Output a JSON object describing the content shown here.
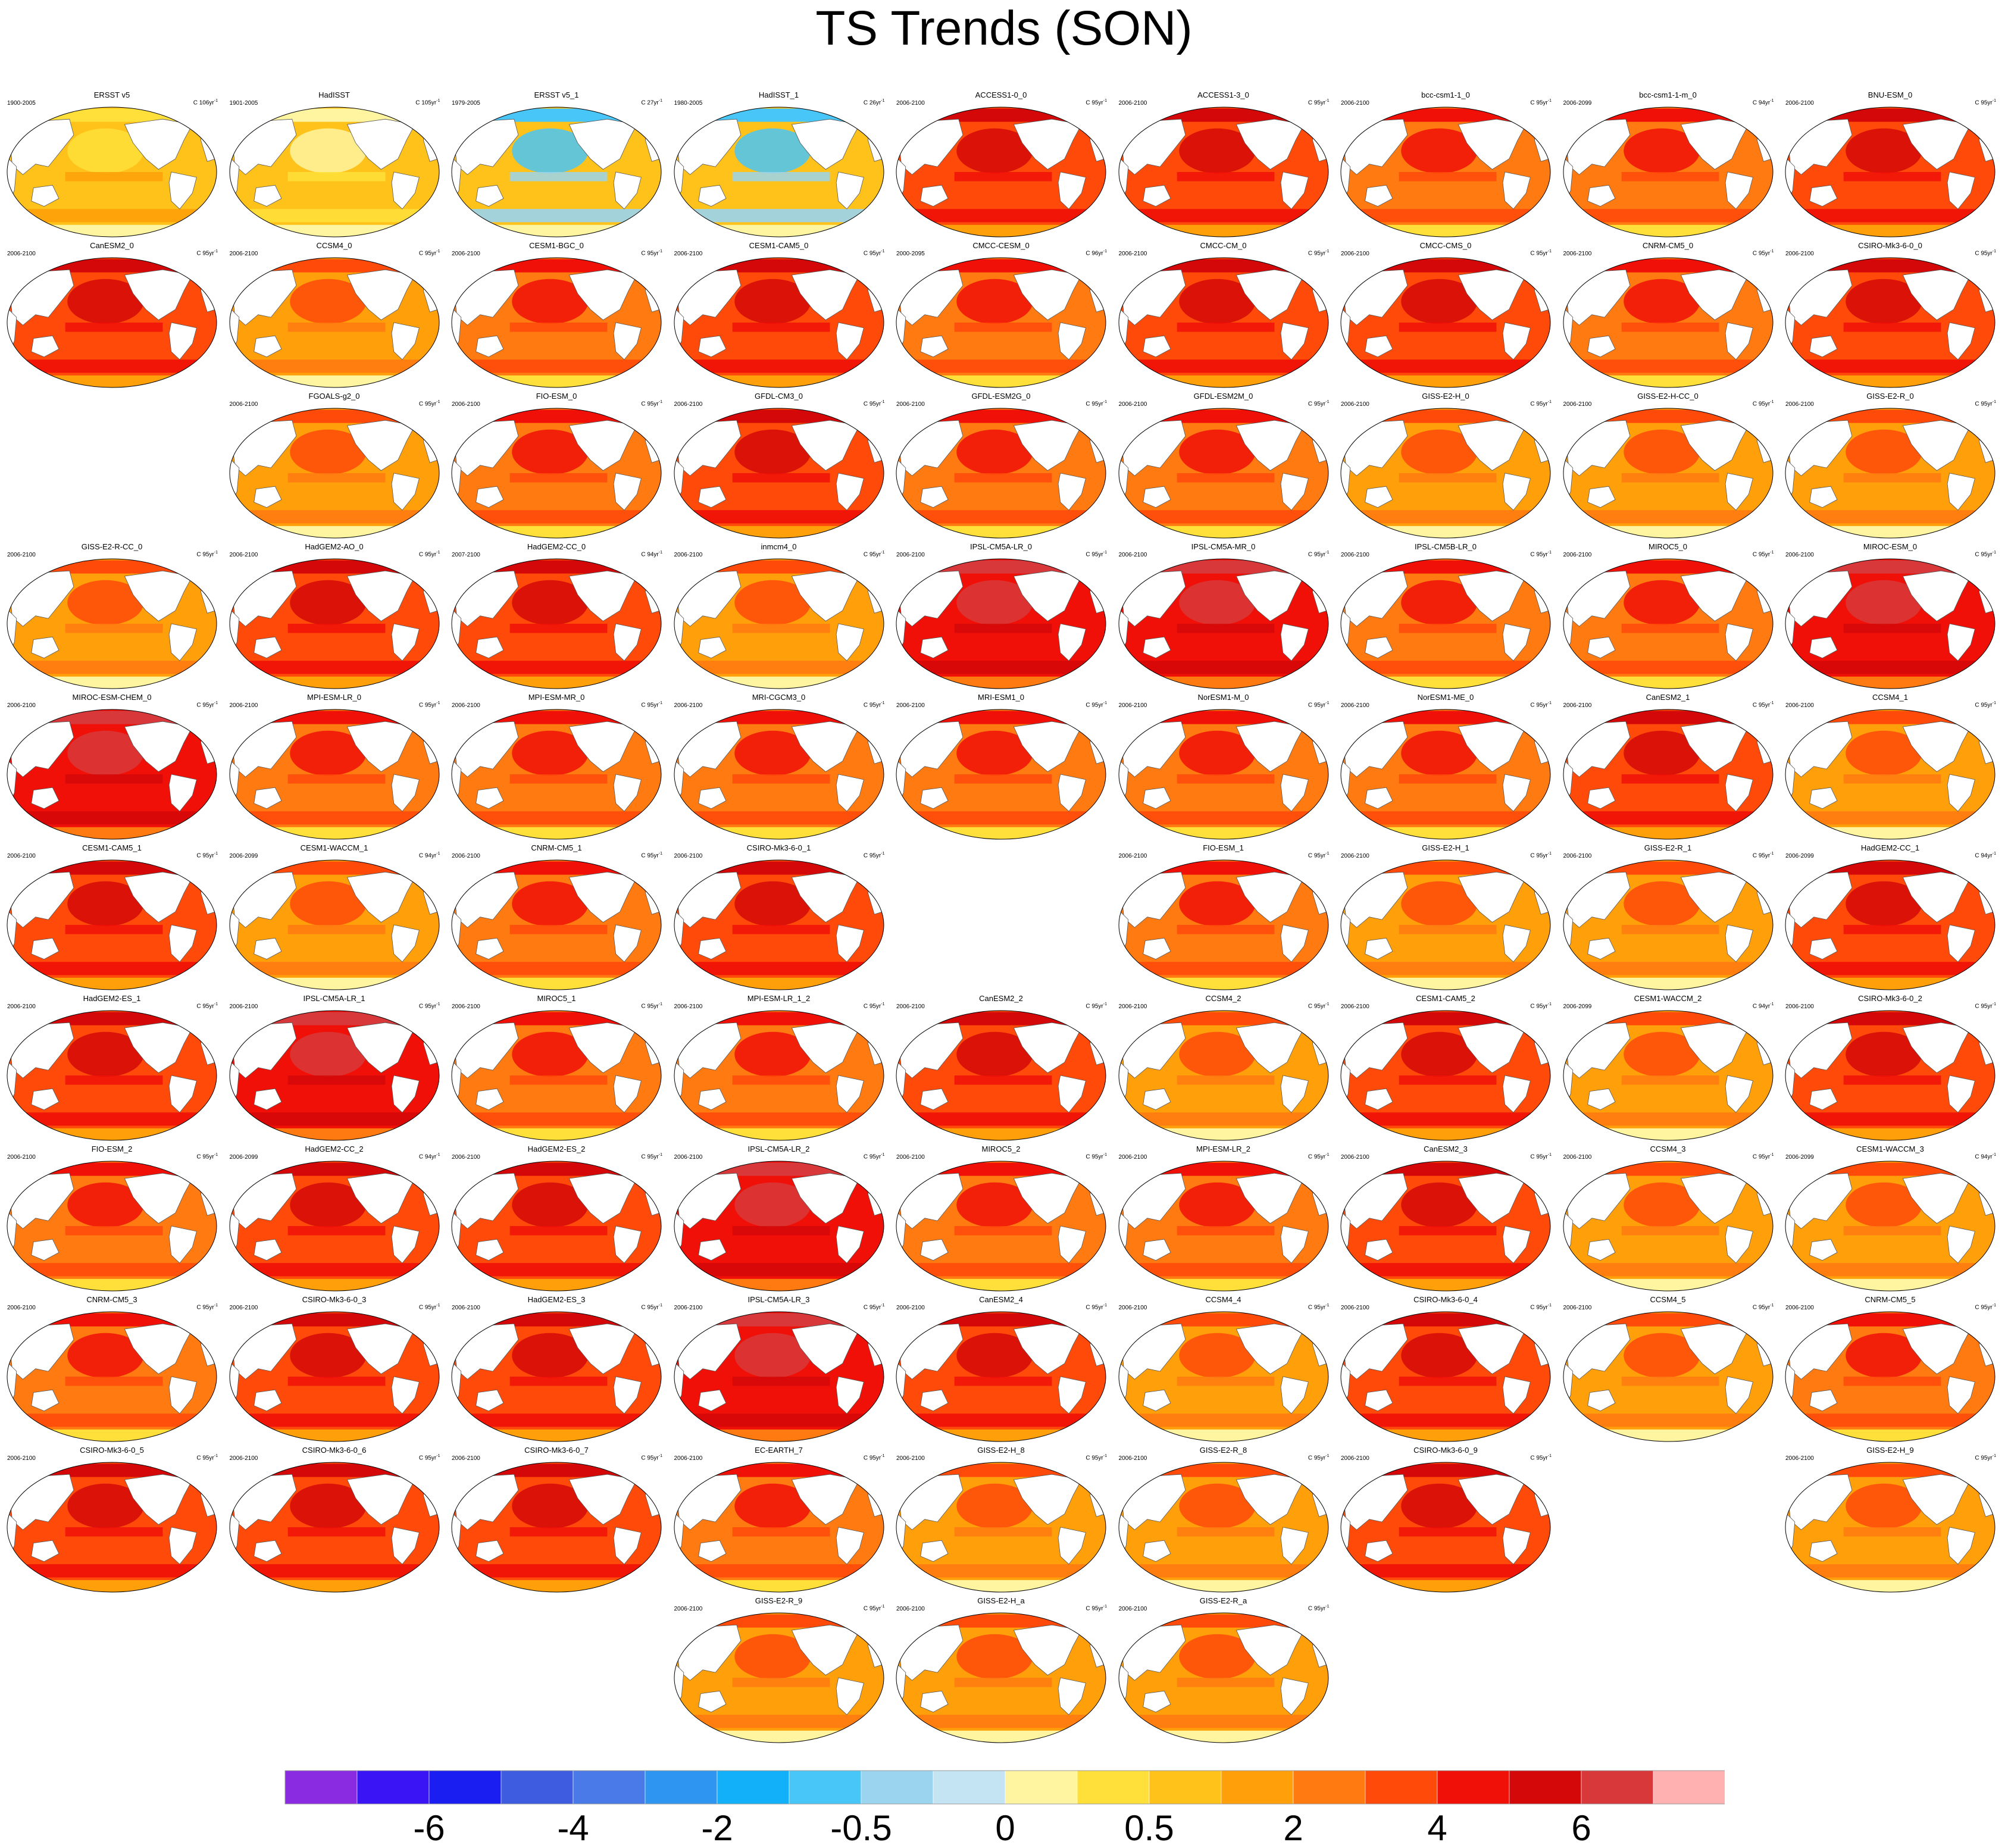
{
  "title": "TS Trends (SON)",
  "chart_data": {
    "type": "heatmap",
    "title": "TS Trends (SON)",
    "colorbar": {
      "colors": [
        "#8a2be2",
        "#3a14f5",
        "#1a1ef0",
        "#3d5ce0",
        "#4a7ae8",
        "#2e96f0",
        "#12b0f8",
        "#48c6f8",
        "#9ad4ef",
        "#c4e4f4",
        "#fff5a0",
        "#ffe03a",
        "#ffc21a",
        "#ffa00a",
        "#ff7a10",
        "#ff4a0a",
        "#f01008",
        "#d40808",
        "#d8383a",
        "#ffb0b0"
      ],
      "tick_labels": [
        "-6",
        "-4",
        "-2",
        "-0.5",
        "0",
        "0.5",
        "2",
        "4",
        "6"
      ]
    },
    "panels": [
      {
        "name": "ERSST v5",
        "period": "1900-2005",
        "units": "C 106yr",
        "level": 2,
        "row": 0,
        "col": 0
      },
      {
        "name": "HadISST",
        "period": "1901-2005",
        "units": "C 105yr",
        "level": 1,
        "row": 0,
        "col": 1
      },
      {
        "name": "ERSST v5_1",
        "period": "1979-2005",
        "units": "C 27yr",
        "level": 0,
        "row": 0,
        "col": 2
      },
      {
        "name": "HadISST_1",
        "period": "1980-2005",
        "units": "C 26yr",
        "level": 0,
        "row": 0,
        "col": 3
      },
      {
        "name": "ACCESS1-0_0",
        "period": "2006-2100",
        "units": "C 95yr",
        "level": 5,
        "row": 0,
        "col": 4
      },
      {
        "name": "ACCESS1-3_0",
        "period": "2006-2100",
        "units": "C 95yr",
        "level": 5,
        "row": 0,
        "col": 5
      },
      {
        "name": "bcc-csm1-1_0",
        "period": "2006-2100",
        "units": "C 95yr",
        "level": 4,
        "row": 0,
        "col": 6
      },
      {
        "name": "bcc-csm1-1-m_0",
        "period": "2006-2099",
        "units": "C 94yr",
        "level": 4,
        "row": 0,
        "col": 7
      },
      {
        "name": "BNU-ESM_0",
        "period": "2006-2100",
        "units": "C 95yr",
        "level": 5,
        "row": 0,
        "col": 8
      },
      {
        "name": "CanESM2_0",
        "period": "2006-2100",
        "units": "C 95yr",
        "level": 5,
        "row": 1,
        "col": 0
      },
      {
        "name": "CCSM4_0",
        "period": "2006-2100",
        "units": "C 95yr",
        "level": 3,
        "row": 1,
        "col": 1
      },
      {
        "name": "CESM1-BGC_0",
        "period": "2006-2100",
        "units": "C 95yr",
        "level": 4,
        "row": 1,
        "col": 2
      },
      {
        "name": "CESM1-CAM5_0",
        "period": "2006-2100",
        "units": "C 95yr",
        "level": 5,
        "row": 1,
        "col": 3
      },
      {
        "name": "CMCC-CESM_0",
        "period": "2000-2095",
        "units": "C 96yr",
        "level": 4,
        "row": 1,
        "col": 4
      },
      {
        "name": "CMCC-CM_0",
        "period": "2006-2100",
        "units": "C 95yr",
        "level": 5,
        "row": 1,
        "col": 5
      },
      {
        "name": "CMCC-CMS_0",
        "period": "2006-2100",
        "units": "C 95yr",
        "level": 5,
        "row": 1,
        "col": 6
      },
      {
        "name": "CNRM-CM5_0",
        "period": "2006-2100",
        "units": "C 95yr",
        "level": 4,
        "row": 1,
        "col": 7
      },
      {
        "name": "CSIRO-Mk3-6-0_0",
        "period": "2006-2100",
        "units": "C 95yr",
        "level": 5,
        "row": 1,
        "col": 8
      },
      {
        "name": "FGOALS-g2_0",
        "period": "2006-2100",
        "units": "C 95yr",
        "level": 3,
        "row": 2,
        "col": 1
      },
      {
        "name": "FIO-ESM_0",
        "period": "2006-2100",
        "units": "C 95yr",
        "level": 4,
        "row": 2,
        "col": 2
      },
      {
        "name": "GFDL-CM3_0",
        "period": "2006-2100",
        "units": "C 95yr",
        "level": 5,
        "row": 2,
        "col": 3
      },
      {
        "name": "GFDL-ESM2G_0",
        "period": "2006-2100",
        "units": "C 95yr",
        "level": 4,
        "row": 2,
        "col": 4
      },
      {
        "name": "GFDL-ESM2M_0",
        "period": "2006-2100",
        "units": "C 95yr",
        "level": 4,
        "row": 2,
        "col": 5
      },
      {
        "name": "GISS-E2-H_0",
        "period": "2006-2100",
        "units": "C 95yr",
        "level": 3,
        "row": 2,
        "col": 6
      },
      {
        "name": "GISS-E2-H-CC_0",
        "period": "2006-2100",
        "units": "C 95yr",
        "level": 3,
        "row": 2,
        "col": 7
      },
      {
        "name": "GISS-E2-R_0",
        "period": "2006-2100",
        "units": "C 95yr",
        "level": 3,
        "row": 2,
        "col": 8
      },
      {
        "name": "GISS-E2-R-CC_0",
        "period": "2006-2100",
        "units": "C 95yr",
        "level": 3,
        "row": 3,
        "col": 0
      },
      {
        "name": "HadGEM2-AO_0",
        "period": "2006-2100",
        "units": "C 95yr",
        "level": 5,
        "row": 3,
        "col": 1
      },
      {
        "name": "HadGEM2-CC_0",
        "period": "2007-2100",
        "units": "C 94yr",
        "level": 5,
        "row": 3,
        "col": 2
      },
      {
        "name": "inmcm4_0",
        "period": "2006-2100",
        "units": "C 95yr",
        "level": 3,
        "row": 3,
        "col": 3
      },
      {
        "name": "IPSL-CM5A-LR_0",
        "period": "2006-2100",
        "units": "C 95yr",
        "level": 6,
        "row": 3,
        "col": 4
      },
      {
        "name": "IPSL-CM5A-MR_0",
        "period": "2006-2100",
        "units": "C 95yr",
        "level": 6,
        "row": 3,
        "col": 5
      },
      {
        "name": "IPSL-CM5B-LR_0",
        "period": "2006-2100",
        "units": "C 95yr",
        "level": 4,
        "row": 3,
        "col": 6
      },
      {
        "name": "MIROC5_0",
        "period": "2006-2100",
        "units": "C 95yr",
        "level": 4,
        "row": 3,
        "col": 7
      },
      {
        "name": "MIROC-ESM_0",
        "period": "2006-2100",
        "units": "C 95yr",
        "level": 6,
        "row": 3,
        "col": 8
      },
      {
        "name": "MIROC-ESM-CHEM_0",
        "period": "2006-2100",
        "units": "C 95yr",
        "level": 6,
        "row": 4,
        "col": 0
      },
      {
        "name": "MPI-ESM-LR_0",
        "period": "2006-2100",
        "units": "C 95yr",
        "level": 4,
        "row": 4,
        "col": 1
      },
      {
        "name": "MPI-ESM-MR_0",
        "period": "2006-2100",
        "units": "C 95yr",
        "level": 4,
        "row": 4,
        "col": 2
      },
      {
        "name": "MRI-CGCM3_0",
        "period": "2006-2100",
        "units": "C 95yr",
        "level": 4,
        "row": 4,
        "col": 3
      },
      {
        "name": "MRI-ESM1_0",
        "period": "2006-2100",
        "units": "C 95yr",
        "level": 4,
        "row": 4,
        "col": 4
      },
      {
        "name": "NorESM1-M_0",
        "period": "2006-2100",
        "units": "C 95yr",
        "level": 4,
        "row": 4,
        "col": 5
      },
      {
        "name": "NorESM1-ME_0",
        "period": "2006-2100",
        "units": "C 95yr",
        "level": 4,
        "row": 4,
        "col": 6
      },
      {
        "name": "CanESM2_1",
        "period": "2006-2100",
        "units": "C 95yr",
        "level": 5,
        "row": 4,
        "col": 7
      },
      {
        "name": "CCSM4_1",
        "period": "2006-2100",
        "units": "C 95yr",
        "level": 3,
        "row": 4,
        "col": 8
      },
      {
        "name": "CESM1-CAM5_1",
        "period": "2006-2100",
        "units": "C 95yr",
        "level": 5,
        "row": 5,
        "col": 0
      },
      {
        "name": "CESM1-WACCM_1",
        "period": "2006-2099",
        "units": "C 94yr",
        "level": 3,
        "row": 5,
        "col": 1
      },
      {
        "name": "CNRM-CM5_1",
        "period": "2006-2100",
        "units": "C 95yr",
        "level": 4,
        "row": 5,
        "col": 2
      },
      {
        "name": "CSIRO-Mk3-6-0_1",
        "period": "2006-2100",
        "units": "C 95yr",
        "level": 5,
        "row": 5,
        "col": 3
      },
      {
        "name": "FIO-ESM_1",
        "period": "2006-2100",
        "units": "C 95yr",
        "level": 4,
        "row": 5,
        "col": 5
      },
      {
        "name": "GISS-E2-H_1",
        "period": "2006-2100",
        "units": "C 95yr",
        "level": 3,
        "row": 5,
        "col": 6
      },
      {
        "name": "GISS-E2-R_1",
        "period": "2006-2100",
        "units": "C 95yr",
        "level": 3,
        "row": 5,
        "col": 7
      },
      {
        "name": "HadGEM2-CC_1",
        "period": "2006-2099",
        "units": "C 94yr",
        "level": 5,
        "row": 5,
        "col": 8
      },
      {
        "name": "HadGEM2-ES_1",
        "period": "2006-2100",
        "units": "C 95yr",
        "level": 5,
        "row": 6,
        "col": 0
      },
      {
        "name": "IPSL-CM5A-LR_1",
        "period": "2006-2100",
        "units": "C 95yr",
        "level": 6,
        "row": 6,
        "col": 1
      },
      {
        "name": "MIROC5_1",
        "period": "2006-2100",
        "units": "C 95yr",
        "level": 4,
        "row": 6,
        "col": 2
      },
      {
        "name": "MPI-ESM-LR_1_2",
        "period": "2006-2100",
        "units": "C 95yr",
        "level": 4,
        "row": 6,
        "col": 3
      },
      {
        "name": "CanESM2_2",
        "period": "2006-2100",
        "units": "C 95yr",
        "level": 5,
        "row": 6,
        "col": 4
      },
      {
        "name": "CCSM4_2",
        "period": "2006-2100",
        "units": "C 95yr",
        "level": 3,
        "row": 6,
        "col": 5
      },
      {
        "name": "CESM1-CAM5_2",
        "period": "2006-2100",
        "units": "C 95yr",
        "level": 5,
        "row": 6,
        "col": 6
      },
      {
        "name": "CESM1-WACCM_2",
        "period": "2006-2099",
        "units": "C 94yr",
        "level": 3,
        "row": 6,
        "col": 7
      },
      {
        "name": "CSIRO-Mk3-6-0_2",
        "period": "2006-2100",
        "units": "C 95yr",
        "level": 5,
        "row": 6,
        "col": 8
      },
      {
        "name": "FIO-ESM_2",
        "period": "2006-2100",
        "units": "C 95yr",
        "level": 4,
        "row": 7,
        "col": 0
      },
      {
        "name": "HadGEM2-CC_2",
        "period": "2006-2099",
        "units": "C 94yr",
        "level": 5,
        "row": 7,
        "col": 1
      },
      {
        "name": "HadGEM2-ES_2",
        "period": "2006-2100",
        "units": "C 95yr",
        "level": 5,
        "row": 7,
        "col": 2
      },
      {
        "name": "IPSL-CM5A-LR_2",
        "period": "2006-2100",
        "units": "C 95yr",
        "level": 6,
        "row": 7,
        "col": 3
      },
      {
        "name": "MIROC5_2",
        "period": "2006-2100",
        "units": "C 95yr",
        "level": 4,
        "row": 7,
        "col": 4
      },
      {
        "name": "MPI-ESM-LR_2",
        "period": "2006-2100",
        "units": "C 95yr",
        "level": 4,
        "row": 7,
        "col": 5
      },
      {
        "name": "CanESM2_3",
        "period": "2006-2100",
        "units": "C 95yr",
        "level": 5,
        "row": 7,
        "col": 6
      },
      {
        "name": "CCSM4_3",
        "period": "2006-2100",
        "units": "C 95yr",
        "level": 3,
        "row": 7,
        "col": 7
      },
      {
        "name": "CESM1-WACCM_3",
        "period": "2006-2099",
        "units": "C 94yr",
        "level": 3,
        "row": 7,
        "col": 8
      },
      {
        "name": "CNRM-CM5_3",
        "period": "2006-2100",
        "units": "C 95yr",
        "level": 4,
        "row": 8,
        "col": 0
      },
      {
        "name": "CSIRO-Mk3-6-0_3",
        "period": "2006-2100",
        "units": "C 95yr",
        "level": 5,
        "row": 8,
        "col": 1
      },
      {
        "name": "HadGEM2-ES_3",
        "period": "2006-2100",
        "units": "C 95yr",
        "level": 5,
        "row": 8,
        "col": 2
      },
      {
        "name": "IPSL-CM5A-LR_3",
        "period": "2006-2100",
        "units": "C 95yr",
        "level": 6,
        "row": 8,
        "col": 3
      },
      {
        "name": "CanESM2_4",
        "period": "2006-2100",
        "units": "C 95yr",
        "level": 5,
        "row": 8,
        "col": 4
      },
      {
        "name": "CCSM4_4",
        "period": "2006-2100",
        "units": "C 95yr",
        "level": 3,
        "row": 8,
        "col": 5
      },
      {
        "name": "CSIRO-Mk3-6-0_4",
        "period": "2006-2100",
        "units": "C 95yr",
        "level": 5,
        "row": 8,
        "col": 6
      },
      {
        "name": "CCSM4_5",
        "period": "2006-2100",
        "units": "C 95yr",
        "level": 3,
        "row": 8,
        "col": 7
      },
      {
        "name": "CNRM-CM5_5",
        "period": "2006-2100",
        "units": "C 95yr",
        "level": 4,
        "row": 8,
        "col": 8
      },
      {
        "name": "CSIRO-Mk3-6-0_5",
        "period": "2006-2100",
        "units": "C 95yr",
        "level": 5,
        "row": 9,
        "col": 0
      },
      {
        "name": "CSIRO-Mk3-6-0_6",
        "period": "2006-2100",
        "units": "C 95yr",
        "level": 5,
        "row": 9,
        "col": 1
      },
      {
        "name": "CSIRO-Mk3-6-0_7",
        "period": "2006-2100",
        "units": "C 95yr",
        "level": 5,
        "row": 9,
        "col": 2
      },
      {
        "name": "EC-EARTH_7",
        "period": "2006-2100",
        "units": "C 95yr",
        "level": 4,
        "row": 9,
        "col": 3
      },
      {
        "name": "GISS-E2-H_8",
        "period": "2006-2100",
        "units": "C 95yr",
        "level": 3,
        "row": 9,
        "col": 4
      },
      {
        "name": "GISS-E2-R_8",
        "period": "2006-2100",
        "units": "C 95yr",
        "level": 3,
        "row": 9,
        "col": 5
      },
      {
        "name": "CSIRO-Mk3-6-0_9",
        "period": "2006-2100",
        "units": "C 95yr",
        "level": 5,
        "row": 9,
        "col": 6
      },
      {
        "name": "GISS-E2-H_9",
        "period": "2006-2100",
        "units": "C 95yr",
        "level": 3,
        "row": 9,
        "col": 8
      },
      {
        "name": "GISS-E2-R_9",
        "period": "2006-2100",
        "units": "C 95yr",
        "level": 3,
        "row": 10,
        "col": 3
      },
      {
        "name": "GISS-E2-H_a",
        "period": "2006-2100",
        "units": "C 95yr",
        "level": 3,
        "row": 10,
        "col": 4
      },
      {
        "name": "GISS-E2-R_a",
        "period": "2006-2100",
        "units": "C 95yr",
        "level": 3,
        "row": 10,
        "col": 5
      }
    ]
  }
}
